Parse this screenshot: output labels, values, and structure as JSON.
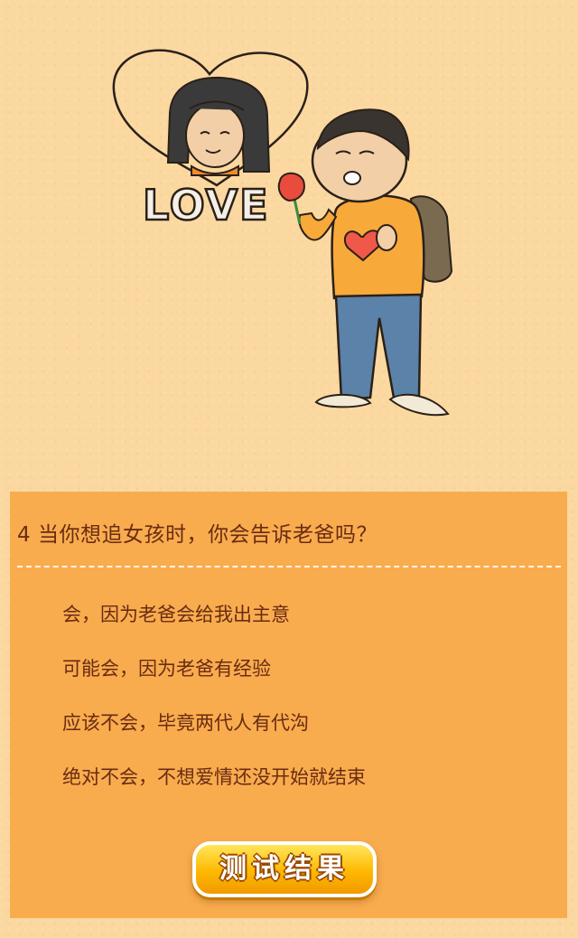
{
  "illustration": {
    "love_text": "LOVE",
    "characters": [
      "girl-portrait",
      "boy-with-rose",
      "backpack",
      "heart"
    ]
  },
  "quiz": {
    "question": "4 当你想追女孩时，你会告诉老爸吗？",
    "options": [
      "会，因为老爸会给我出主意",
      "可能会，因为老爸有经验",
      "应该不会，毕竟两代人有代沟",
      "绝对不会，不想爱情还没开始就结束"
    ],
    "result_button_label": "测试结果"
  },
  "colors": {
    "background": "#fbd8a0",
    "panel": "#f8ac4e",
    "text": "#6a2b12",
    "button": "#ffb800",
    "heart": "#f0584a",
    "shirt": "#f7a93a",
    "jeans": "#5b82a8"
  }
}
